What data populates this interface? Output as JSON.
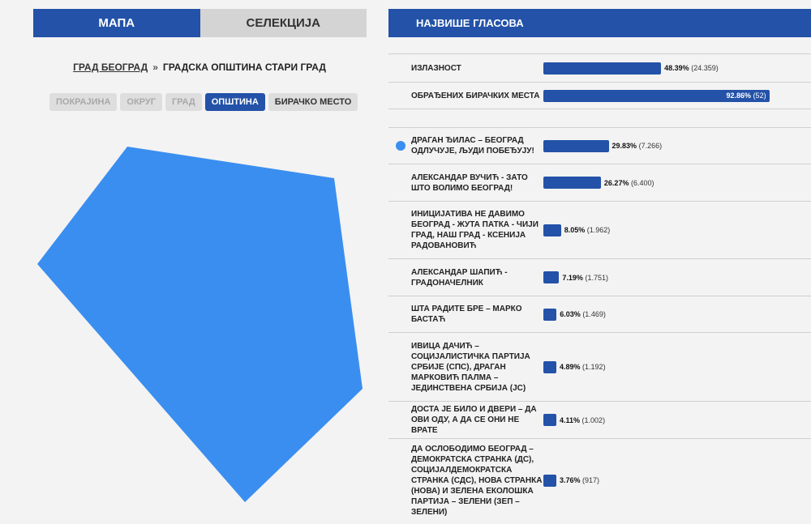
{
  "tabs": {
    "map": "МАПА",
    "selection": "СЕЛЕКЦИЈА"
  },
  "breadcrumb": {
    "root": "ГРАД БЕОГРАД",
    "separator": "»",
    "current": "ГРАДСКА ОПШТИНА СТАРИ ГРАД"
  },
  "levels": [
    "ПОКРАЈИНА",
    "ОКРУГ",
    "ГРАД",
    "ОПШТИНА",
    "БИРАЧКО МЕСТО"
  ],
  "map": {
    "fill": "#3a8ef0"
  },
  "panel": {
    "title": "НАЈВИШЕ ГЛАСОВА"
  },
  "stats": [
    {
      "label": "ИЗЛАЗНОСТ",
      "percent": "48.39%",
      "count": "(24.359)",
      "value": 48.39
    },
    {
      "label": "ОБРАЂЕНИХ БИРАЧКИХ МЕСТА",
      "percent": "92.86%",
      "count": "(52)",
      "value": 92.86
    }
  ],
  "lists": [
    {
      "label": "ДРАГАН ЂИЛАС – БЕОГРАД ОДЛУЧУЈЕ, ЉУДИ ПОБЕЂУЈУ!",
      "percent": "29.83%",
      "count": "(7.266)",
      "value": 29.83,
      "selected": true
    },
    {
      "label": "АЛЕКСАНДАР ВУЧИЋ - ЗАТО ШТО ВОЛИМО БЕОГРАД!",
      "percent": "26.27%",
      "count": "(6.400)",
      "value": 26.27
    },
    {
      "label": "ИНИЦИЈАТИВА НЕ ДАВИМО БЕОГРАД - ЖУТА ПАТКА - ЧИЈИ ГРАД, НАШ ГРАД - КСЕНИЈА РАДОВАНОВИЋ",
      "percent": "8.05%",
      "count": "(1.962)",
      "value": 8.05
    },
    {
      "label": "АЛЕКСАНДАР ШАПИЋ - ГРАДОНАЧЕЛНИК",
      "percent": "7.19%",
      "count": "(1.751)",
      "value": 7.19
    },
    {
      "label": "ШТА РАДИТЕ БРЕ – МАРКО БАСТАЋ",
      "percent": "6.03%",
      "count": "(1.469)",
      "value": 6.03
    },
    {
      "label": "ИВИЦА ДАЧИЋ – СОЦИЈАЛИСТИЧКА ПАРТИЈА СРБИЈЕ (СПС), ДРАГАН МАРКОВИЋ ПАЛМА – ЈЕДИНСТВЕНА СРБИЈА (ЈС)",
      "percent": "4.89%",
      "count": "(1.192)",
      "value": 4.89
    },
    {
      "label": "ДОСТА ЈЕ БИЛО И ДВЕРИ – ДА ОВИ ОДУ, А ДА СЕ ОНИ НЕ ВРАТЕ",
      "percent": "4.11%",
      "count": "(1.002)",
      "value": 4.11
    },
    {
      "label": "ДА ОСЛОБОДИМО БЕОГРАД – ДЕМОКРАТСКА СТРАНКА (ДС), СОЦИЈАЛДЕМОКРАТСКА СТРАНКА (СДС), НОВА СТРАНКА (НОВА) И ЗЕЛЕНА ЕКОЛОШКА ПАРТИЈА – ЗЕЛЕНИ (ЗЕП – ЗЕЛЕНИ)",
      "percent": "3.76%",
      "count": "(917)",
      "value": 3.76
    }
  ]
}
